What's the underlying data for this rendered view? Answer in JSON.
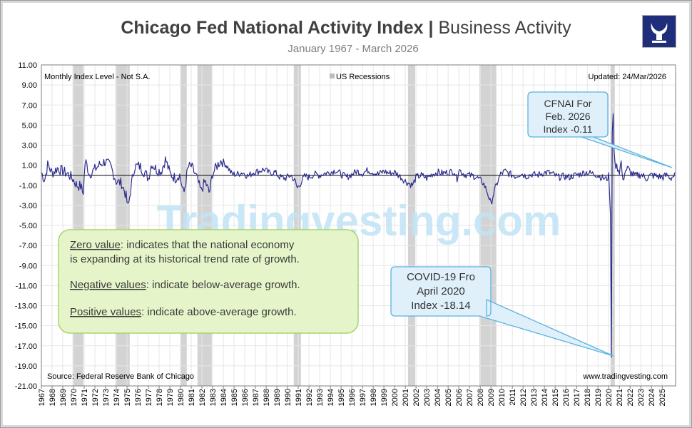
{
  "header": {
    "title_bold": "Chicago Fed National Activity Index",
    "title_sep": "|",
    "title_rest": "Business Activity",
    "subtitle": "January 1967 - March 2026"
  },
  "logo": {
    "icon": "bull-logo-icon",
    "color": "#1f2d7a"
  },
  "colors": {
    "series": "#2b2b8f",
    "recession": "#d3d3d3",
    "zero_line": "#000000",
    "callout_fill": "#dff0fb",
    "callout_border": "#5bb3dd",
    "note_fill": "#e6f5c9",
    "note_border": "#a6d56b"
  },
  "chart_data": {
    "type": "line",
    "title": "Chicago Fed National Activity Index | Business Activity",
    "subtitle": "January 1967 - March 2026",
    "xlabel": "",
    "ylabel": "",
    "series_name": "Monthly Index Level - Not S.A.",
    "ylim": [
      -21,
      11
    ],
    "xlim": [
      1967.0,
      2026.25
    ],
    "grid": true,
    "yticks": [
      "11.00",
      "9.00",
      "7.00",
      "5.00",
      "3.00",
      "1.00",
      "-1.00",
      "-3.00",
      "-5.00",
      "-7.00",
      "-9.00",
      "-11.00",
      "-13.00",
      "-15.00",
      "-17.00",
      "-19.00",
      "-21.00"
    ],
    "xticks": [
      "1967",
      "1968",
      "1969",
      "1970",
      "1971",
      "1972",
      "1973",
      "1974",
      "1975",
      "1976",
      "1977",
      "1978",
      "1979",
      "1980",
      "1981",
      "1982",
      "1983",
      "1984",
      "1985",
      "1986",
      "1987",
      "1988",
      "1989",
      "1990",
      "1991",
      "1992",
      "1993",
      "1994",
      "1995",
      "1996",
      "1997",
      "1998",
      "1999",
      "2000",
      "2001",
      "2002",
      "2003",
      "2004",
      "2005",
      "2006",
      "2007",
      "2008",
      "2009",
      "2010",
      "2011",
      "2012",
      "2013",
      "2014",
      "2015",
      "2016",
      "2017",
      "2018",
      "2019",
      "2020",
      "2021",
      "2022",
      "2023",
      "2024",
      "2025"
    ],
    "recessions": [
      [
        1969.92,
        1970.92
      ],
      [
        1973.92,
        1975.25
      ],
      [
        1980.0,
        1980.58
      ],
      [
        1981.58,
        1982.92
      ],
      [
        1990.58,
        1991.25
      ],
      [
        2001.25,
        2001.92
      ],
      [
        2007.92,
        2009.5
      ],
      [
        2020.17,
        2020.33
      ]
    ],
    "anchors": [
      [
        1967.0,
        0.3
      ],
      [
        1967.3,
        -0.5
      ],
      [
        1967.6,
        1.1
      ],
      [
        1968.0,
        0.2
      ],
      [
        1968.5,
        0.7
      ],
      [
        1969.0,
        0.4
      ],
      [
        1969.5,
        0.1
      ],
      [
        1969.9,
        -0.3
      ],
      [
        1970.3,
        -1.0
      ],
      [
        1970.7,
        -1.1
      ],
      [
        1970.9,
        -1.9
      ],
      [
        1971.1,
        1.5
      ],
      [
        1971.5,
        0.1
      ],
      [
        1972.0,
        0.6
      ],
      [
        1972.5,
        1.1
      ],
      [
        1973.0,
        1.4
      ],
      [
        1973.5,
        0.8
      ],
      [
        1974.0,
        -0.6
      ],
      [
        1974.5,
        -0.8
      ],
      [
        1974.9,
        -2.0
      ],
      [
        1975.1,
        -3.3
      ],
      [
        1975.4,
        -1.0
      ],
      [
        1975.7,
        0.9
      ],
      [
        1976.2,
        0.9
      ],
      [
        1976.7,
        0.2
      ],
      [
        1977.0,
        -0.3
      ],
      [
        1977.3,
        1.2
      ],
      [
        1977.8,
        0.5
      ],
      [
        1978.2,
        0.4
      ],
      [
        1978.6,
        1.6
      ],
      [
        1979.0,
        0.2
      ],
      [
        1979.5,
        -0.3
      ],
      [
        1979.9,
        0.1
      ],
      [
        1980.3,
        -1.9
      ],
      [
        1980.7,
        0.8
      ],
      [
        1981.0,
        0.9
      ],
      [
        1981.5,
        -0.2
      ],
      [
        1981.9,
        -1.6
      ],
      [
        1982.3,
        -0.6
      ],
      [
        1982.7,
        -1.8
      ],
      [
        1983.0,
        0.2
      ],
      [
        1983.5,
        1.1
      ],
      [
        1983.8,
        1.5
      ],
      [
        1984.3,
        1.0
      ],
      [
        1984.8,
        0.1
      ],
      [
        1985.3,
        0.1
      ],
      [
        1985.8,
        0.3
      ],
      [
        1986.3,
        -0.1
      ],
      [
        1986.8,
        0.3
      ],
      [
        1987.3,
        0.4
      ],
      [
        1987.8,
        0.6
      ],
      [
        1988.3,
        0.2
      ],
      [
        1988.8,
        0.3
      ],
      [
        1989.3,
        -0.2
      ],
      [
        1989.8,
        -0.3
      ],
      [
        1990.3,
        0.0
      ],
      [
        1990.7,
        -0.6
      ],
      [
        1990.9,
        -1.3
      ],
      [
        1991.2,
        -0.8
      ],
      [
        1991.6,
        -0.1
      ],
      [
        1992.0,
        -0.2
      ],
      [
        1992.5,
        0.1
      ],
      [
        1993.0,
        0.0
      ],
      [
        1993.5,
        0.2
      ],
      [
        1994.0,
        0.3
      ],
      [
        1994.5,
        0.5
      ],
      [
        1995.0,
        0.1
      ],
      [
        1995.5,
        -0.2
      ],
      [
        1996.0,
        0.1
      ],
      [
        1996.5,
        0.4
      ],
      [
        1997.0,
        0.2
      ],
      [
        1997.5,
        0.5
      ],
      [
        1998.0,
        0.3
      ],
      [
        1998.5,
        0.1
      ],
      [
        1999.0,
        0.4
      ],
      [
        1999.5,
        0.2
      ],
      [
        2000.0,
        0.3
      ],
      [
        2000.5,
        -0.1
      ],
      [
        2000.9,
        -0.5
      ],
      [
        2001.3,
        -0.8
      ],
      [
        2001.7,
        -1.0
      ],
      [
        2002.0,
        -0.2
      ],
      [
        2002.5,
        0.0
      ],
      [
        2003.0,
        -0.3
      ],
      [
        2003.5,
        0.1
      ],
      [
        2004.0,
        0.3
      ],
      [
        2004.5,
        0.2
      ],
      [
        2005.0,
        0.3
      ],
      [
        2005.6,
        0.4
      ],
      [
        2005.8,
        -0.5
      ],
      [
        2006.0,
        0.6
      ],
      [
        2006.5,
        0.1
      ],
      [
        2007.0,
        0.0
      ],
      [
        2007.5,
        -0.1
      ],
      [
        2007.9,
        -0.4
      ],
      [
        2008.3,
        -0.8
      ],
      [
        2008.7,
        -1.8
      ],
      [
        2009.0,
        -2.9
      ],
      [
        2009.2,
        -2.0
      ],
      [
        2009.5,
        -1.0
      ],
      [
        2009.9,
        0.1
      ],
      [
        2010.3,
        0.4
      ],
      [
        2010.8,
        0.1
      ],
      [
        2011.3,
        -0.1
      ],
      [
        2011.8,
        0.2
      ],
      [
        2012.3,
        -0.1
      ],
      [
        2012.8,
        0.1
      ],
      [
        2013.3,
        0.0
      ],
      [
        2013.8,
        0.2
      ],
      [
        2014.3,
        0.3
      ],
      [
        2014.8,
        0.1
      ],
      [
        2015.3,
        -0.2
      ],
      [
        2015.8,
        -0.1
      ],
      [
        2016.3,
        -0.2
      ],
      [
        2016.8,
        0.0
      ],
      [
        2017.3,
        0.1
      ],
      [
        2017.8,
        0.3
      ],
      [
        2018.3,
        0.2
      ],
      [
        2018.8,
        0.1
      ],
      [
        2019.3,
        -0.2
      ],
      [
        2019.8,
        -0.4
      ],
      [
        2020.0,
        -0.1
      ],
      [
        2020.17,
        -4.0
      ],
      [
        2020.25,
        -18.14
      ],
      [
        2020.33,
        4.2
      ],
      [
        2020.42,
        6.2
      ],
      [
        2020.5,
        2.5
      ],
      [
        2020.6,
        1.1
      ],
      [
        2020.8,
        0.8
      ],
      [
        2021.0,
        0.4
      ],
      [
        2021.2,
        1.5
      ],
      [
        2021.3,
        -1.0
      ],
      [
        2021.5,
        0.4
      ],
      [
        2021.8,
        0.7
      ],
      [
        2022.0,
        0.3
      ],
      [
        2022.5,
        -0.1
      ],
      [
        2023.0,
        0.1
      ],
      [
        2023.5,
        -0.3
      ],
      [
        2024.0,
        0.0
      ],
      [
        2024.5,
        -0.1
      ],
      [
        2025.0,
        -0.2
      ],
      [
        2025.5,
        0.0
      ],
      [
        2025.8,
        -0.3
      ],
      [
        2026.0,
        -0.1
      ],
      [
        2026.1,
        -0.11
      ]
    ]
  },
  "plot": {
    "series_label": "Monthly Index Level - Not S.A.",
    "legend_label": "US Recessions",
    "updated": "Updated: 24/Mar/2026",
    "source": "Source: Federal Reserve Bank of Chicago",
    "website": "www.tradingvesting.com",
    "watermark": "Tradingvesting.com"
  },
  "callouts": {
    "cfnai": [
      "CFNAI For",
      "Feb. 2026",
      "Index  -0.11"
    ],
    "covid": [
      "COVID-19 Fro",
      "April 2020",
      "Index -18.14"
    ]
  },
  "note": {
    "zero_term": "Zero value",
    "zero_text_1": ": indicates that the national economy",
    "zero_text_2": "is expanding at its historical trend rate of growth.",
    "neg_term": "Negative values",
    "neg_text": ": indicate below-average growth.",
    "pos_term": "Positive values",
    "pos_text": ": indicate above-average growth."
  }
}
